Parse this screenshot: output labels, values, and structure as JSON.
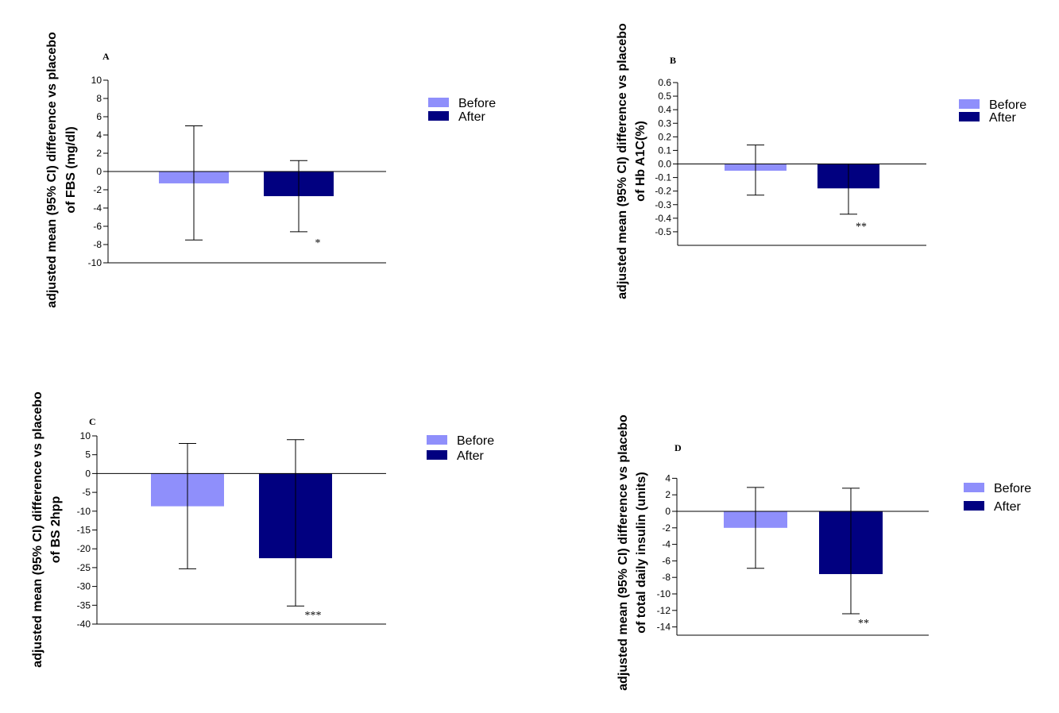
{
  "chart_data": [
    {
      "type": "bar",
      "panel": "A",
      "categories": [
        "Before",
        "After"
      ],
      "values": [
        -1.3,
        -2.7
      ],
      "error_low": [
        -7.5,
        -6.6
      ],
      "error_high": [
        5.0,
        1.2
      ],
      "significance": [
        "",
        "*"
      ],
      "ylabel": [
        "adjusted mean (95% CI) difference vs placebo",
        "of  FBS (mg/dl)"
      ],
      "ylim": [
        -10,
        10
      ],
      "yticks": [
        10,
        8,
        6,
        4,
        2,
        0,
        -2,
        -4,
        -6,
        -8,
        -10
      ],
      "ytick_labels": [
        "10",
        "8",
        "6",
        "4",
        "2",
        "0",
        "-2",
        "-4",
        "-6",
        "-8",
        "-10"
      ],
      "legend": [
        "Before",
        "After"
      ],
      "colors": [
        "#8f8ffb",
        "#010080"
      ]
    },
    {
      "type": "bar",
      "panel": "B",
      "categories": [
        "Before",
        "After"
      ],
      "values": [
        -0.05,
        -0.18
      ],
      "error_low": [
        -0.23,
        -0.37
      ],
      "error_high": [
        0.14,
        0.0
      ],
      "significance": [
        "",
        "**"
      ],
      "ylabel": [
        "adjusted mean (95% CI) difference vs placebo",
        "of Hb A1C(%)"
      ],
      "ylim": [
        -0.6,
        0.6
      ],
      "yticks": [
        0.6,
        0.5,
        0.4,
        0.3,
        0.2,
        0.1,
        0.0,
        -0.1,
        -0.2,
        -0.3,
        -0.4,
        -0.5
      ],
      "ytick_labels": [
        "0.6",
        "0.5",
        "0.4",
        "0.3",
        "0.2",
        "0.1",
        "0.0",
        "-0.1",
        "-0.2",
        "-0.3",
        "-0.4",
        "-0.5"
      ],
      "legend": [
        "Before",
        "After"
      ],
      "colors": [
        "#8f8ffb",
        "#010080"
      ]
    },
    {
      "type": "bar",
      "panel": "C",
      "categories": [
        "Before",
        "After"
      ],
      "values": [
        -8.7,
        -22.5
      ],
      "error_low": [
        -25.3,
        -35.2
      ],
      "error_high": [
        8.0,
        9.0
      ],
      "significance": [
        "",
        "***"
      ],
      "ylabel": [
        "adjusted mean (95% CI) difference vs placebo",
        "of BS 2hpp"
      ],
      "ylim": [
        -40,
        10
      ],
      "yticks": [
        10,
        5,
        0,
        -5,
        -10,
        -15,
        -20,
        -25,
        -30,
        -35,
        -40
      ],
      "ytick_labels": [
        "10",
        "5",
        "0",
        "-5",
        "-10",
        "-15",
        "-20",
        "-25",
        "-30",
        "-35",
        "-40"
      ],
      "legend": [
        "Before",
        "After"
      ],
      "colors": [
        "#8f8ffb",
        "#010080"
      ]
    },
    {
      "type": "bar",
      "panel": "D",
      "categories": [
        "Before",
        "After"
      ],
      "values": [
        -2.0,
        -7.6
      ],
      "error_low": [
        -6.9,
        -12.4
      ],
      "error_high": [
        2.9,
        2.8
      ],
      "significance": [
        "",
        "**"
      ],
      "ylabel": [
        "adjusted mean (95% CI) difference vs placebo",
        "of total daily insulin (units)"
      ],
      "ylim": [
        -15,
        5
      ],
      "yticks": [
        4,
        2,
        0,
        -2,
        -4,
        -6,
        -8,
        -10,
        -12,
        -14
      ],
      "ytick_labels": [
        "4",
        "2",
        "0",
        "-2",
        "-4",
        "-6",
        "-8",
        "-10",
        "-12",
        "-14"
      ],
      "legend": [
        "Before",
        "After"
      ],
      "colors": [
        "#8f8ffb",
        "#010080"
      ]
    }
  ]
}
